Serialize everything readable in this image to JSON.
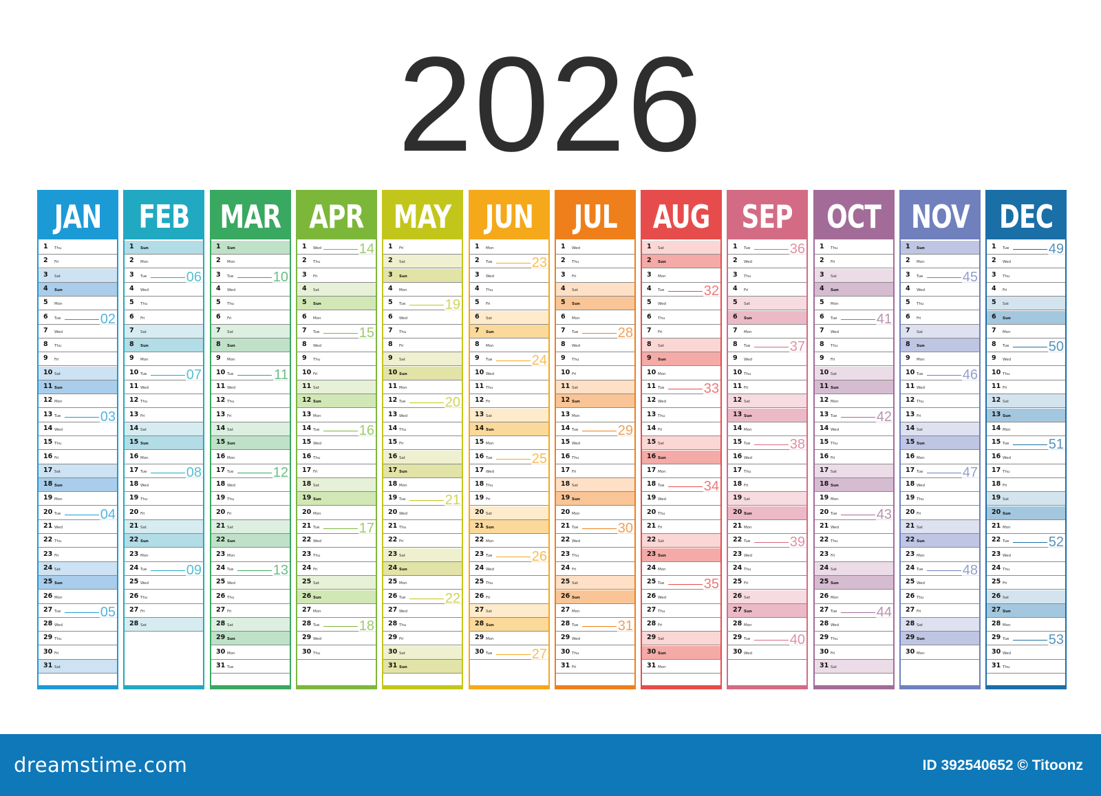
{
  "year": "2026",
  "months": [
    {
      "name": "JAN",
      "days": 31,
      "start": 4,
      "color": "#1c9ad6",
      "band": "#cde2f2",
      "sun": "#a9cdeb",
      "weeks": [
        {
          "label": "02",
          "row": 5
        },
        {
          "label": "03",
          "row": 12
        },
        {
          "label": "04",
          "row": 19
        },
        {
          "label": "05",
          "row": 26
        }
      ]
    },
    {
      "name": "FEB",
      "days": 28,
      "start": 0,
      "color": "#21a9c1",
      "band": "#d6ecf1",
      "sun": "#b2dce6",
      "weeks": [
        {
          "label": "06",
          "row": 2
        },
        {
          "label": "07",
          "row": 9
        },
        {
          "label": "08",
          "row": 16
        },
        {
          "label": "09",
          "row": 23
        }
      ]
    },
    {
      "name": "MAR",
      "days": 31,
      "start": 0,
      "color": "#39a860",
      "band": "#dcefe1",
      "sun": "#bfe1c8",
      "weeks": [
        {
          "label": "10",
          "row": 2
        },
        {
          "label": "11",
          "row": 9
        },
        {
          "label": "12",
          "row": 16
        },
        {
          "label": "13",
          "row": 23
        }
      ]
    },
    {
      "name": "APR",
      "days": 30,
      "start": 3,
      "color": "#7cb73a",
      "band": "#e6f1d7",
      "sun": "#d2e7b6",
      "weeks": [
        {
          "label": "14",
          "row": 0
        },
        {
          "label": "15",
          "row": 6
        },
        {
          "label": "16",
          "row": 13
        },
        {
          "label": "17",
          "row": 20
        },
        {
          "label": "18",
          "row": 27
        }
      ]
    },
    {
      "name": "MAY",
      "days": 31,
      "start": 5,
      "color": "#c3c61a",
      "band": "#eff0cf",
      "sun": "#e2e3a6",
      "weeks": [
        {
          "label": "19",
          "row": 4
        },
        {
          "label": "20",
          "row": 11
        },
        {
          "label": "21",
          "row": 18
        },
        {
          "label": "22",
          "row": 25
        }
      ]
    },
    {
      "name": "JUN",
      "days": 30,
      "start": 1,
      "color": "#f5a81a",
      "band": "#fdebcb",
      "sun": "#fbd99a",
      "weeks": [
        {
          "label": "23",
          "row": 1
        },
        {
          "label": "24",
          "row": 8
        },
        {
          "label": "25",
          "row": 15
        },
        {
          "label": "26",
          "row": 22
        },
        {
          "label": "27",
          "row": 29
        }
      ]
    },
    {
      "name": "JUL",
      "days": 31,
      "start": 3,
      "color": "#ef7f1a",
      "band": "#fde0c6",
      "sun": "#f9c596",
      "weeks": [
        {
          "label": "28",
          "row": 6
        },
        {
          "label": "29",
          "row": 13
        },
        {
          "label": "30",
          "row": 20
        },
        {
          "label": "31",
          "row": 27
        }
      ]
    },
    {
      "name": "AUG",
      "days": 31,
      "start": 6,
      "color": "#e74c4c",
      "band": "#fad7d4",
      "sun": "#f4aaa6",
      "weeks": [
        {
          "label": "32",
          "row": 3
        },
        {
          "label": "33",
          "row": 10
        },
        {
          "label": "34",
          "row": 17
        },
        {
          "label": "35",
          "row": 24
        }
      ]
    },
    {
      "name": "SEP",
      "days": 30,
      "start": 2,
      "color": "#d46b84",
      "band": "#f6dbe1",
      "sun": "#ecbac6",
      "weeks": [
        {
          "label": "36",
          "row": 0
        },
        {
          "label": "37",
          "row": 7
        },
        {
          "label": "38",
          "row": 14
        },
        {
          "label": "39",
          "row": 21
        },
        {
          "label": "40",
          "row": 28
        }
      ]
    },
    {
      "name": "OCT",
      "days": 31,
      "start": 4,
      "color": "#a36c98",
      "band": "#ebdce8",
      "sun": "#d6bcd0",
      "weeks": [
        {
          "label": "41",
          "row": 5
        },
        {
          "label": "42",
          "row": 12
        },
        {
          "label": "43",
          "row": 19
        },
        {
          "label": "44",
          "row": 26
        }
      ]
    },
    {
      "name": "NOV",
      "days": 30,
      "start": 0,
      "color": "#6f80bd",
      "band": "#dde1f0",
      "sun": "#bfc6e3",
      "weeks": [
        {
          "label": "45",
          "row": 2
        },
        {
          "label": "46",
          "row": 9
        },
        {
          "label": "47",
          "row": 16
        },
        {
          "label": "48",
          "row": 23
        }
      ]
    },
    {
      "name": "DEC",
      "days": 31,
      "start": 2,
      "color": "#1a6fa6",
      "band": "#d3e4ef",
      "sun": "#a3c7de",
      "weeks": [
        {
          "label": "49",
          "row": 0
        },
        {
          "label": "50",
          "row": 7
        },
        {
          "label": "51",
          "row": 14
        },
        {
          "label": "52",
          "row": 21
        },
        {
          "label": "53",
          "row": 28
        }
      ]
    }
  ],
  "weekdays": [
    "Sun",
    "Mon",
    "Tue",
    "Wed",
    "Thu",
    "Fri",
    "Sat"
  ],
  "footer": {
    "brand": "dreamstime.com",
    "credit": "ID 392540652 © Titoonz"
  }
}
